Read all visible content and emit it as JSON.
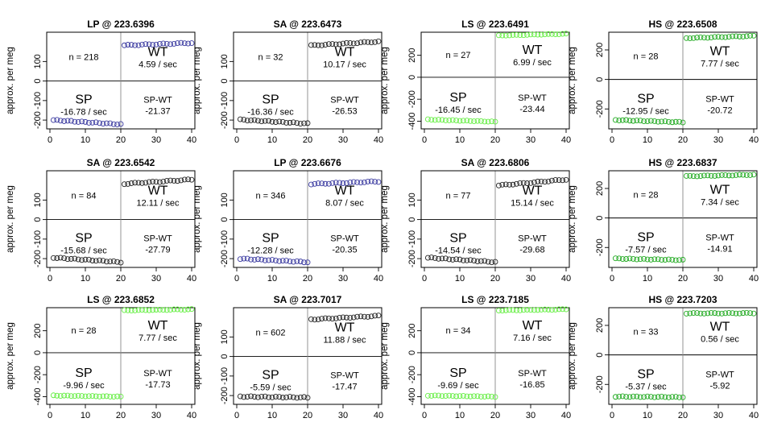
{
  "shared": {
    "ylabel": "approx. per meg",
    "xticks": [
      0,
      10,
      20,
      30,
      40
    ],
    "xlim": [
      0,
      40
    ],
    "colors": {
      "LP": "#3a3aa0",
      "SA": "#222222",
      "LS": "#66ee44",
      "HS": "#22aa22"
    },
    "labels": {
      "wt": "WT",
      "sp": "SP",
      "spwt": "SP-WT"
    }
  },
  "chart_data": [
    {
      "type": "scatter",
      "title": "LP @ 223.6396",
      "gas": "LP",
      "n_text": "n = 218",
      "wt_rate": "4.59 / sec",
      "sp_rate": "-16.78 / sec",
      "spwt_value": "-21.37",
      "ylim": [
        -245,
        250
      ],
      "yticks": [
        "-200",
        "-100",
        "0",
        "100"
      ],
      "ytick_values": [
        -200,
        -100,
        0,
        100
      ],
      "sp_start": -200,
      "sp_end": -222,
      "wt_start": 183,
      "wt_end": 195
    },
    {
      "type": "scatter",
      "title": "SA @ 223.6473",
      "gas": "SA",
      "n_text": "n = 32",
      "wt_rate": "10.17 / sec",
      "sp_rate": "-16.36 / sec",
      "spwt_value": "-26.53",
      "ylim": [
        -245,
        250
      ],
      "yticks": [
        "-200",
        "-100",
        "0",
        "100"
      ],
      "ytick_values": [
        -200,
        -100,
        0,
        100
      ],
      "sp_start": -198,
      "sp_end": -218,
      "wt_start": 182,
      "wt_end": 202
    },
    {
      "type": "scatter",
      "title": "LS @ 223.6491",
      "gas": "LS",
      "n_text": "n = 27",
      "wt_rate": "6.99 / sec",
      "sp_rate": "-16.45 / sec",
      "spwt_value": "-23.44",
      "ylim": [
        -470,
        410
      ],
      "yticks": [
        "-400",
        "-200",
        "0",
        "200"
      ],
      "ytick_values": [
        -400,
        -200,
        0,
        200
      ],
      "sp_start": -385,
      "sp_end": -405,
      "wt_start": 380,
      "wt_end": 395
    },
    {
      "type": "scatter",
      "title": "HS @ 223.6508",
      "gas": "HS",
      "n_text": "n = 28",
      "wt_rate": "7.77 / sec",
      "sp_rate": "-12.95 / sec",
      "spwt_value": "-20.72",
      "ylim": [
        -335,
        320
      ],
      "yticks": [
        "-200",
        "0",
        "200"
      ],
      "ytick_values": [
        -200,
        0,
        200
      ],
      "sp_start": -275,
      "sp_end": -290,
      "wt_start": 280,
      "wt_end": 295
    },
    {
      "type": "scatter",
      "title": "SA @ 223.6542",
      "gas": "SA",
      "n_text": "n = 84",
      "wt_rate": "12.11 / sec",
      "sp_rate": "-15.68 / sec",
      "spwt_value": "-27.79",
      "ylim": [
        -245,
        250
      ],
      "yticks": [
        "-200",
        "-100",
        "0",
        "100"
      ],
      "ytick_values": [
        -200,
        -100,
        0,
        100
      ],
      "sp_start": -195,
      "sp_end": -218,
      "wt_start": 183,
      "wt_end": 205
    },
    {
      "type": "scatter",
      "title": "LP @ 223.6676",
      "gas": "LP",
      "n_text": "n = 346",
      "wt_rate": "8.07 / sec",
      "sp_rate": "-12.28 / sec",
      "spwt_value": "-20.35",
      "ylim": [
        -245,
        250
      ],
      "yticks": [
        "-200",
        "-100",
        "0",
        "100"
      ],
      "ytick_values": [
        -200,
        -100,
        0,
        100
      ],
      "sp_start": -200,
      "sp_end": -218,
      "wt_start": 182,
      "wt_end": 195
    },
    {
      "type": "scatter",
      "title": "SA @ 223.6806",
      "gas": "SA",
      "n_text": "n = 77",
      "wt_rate": "15.14 / sec",
      "sp_rate": "-14.54 / sec",
      "spwt_value": "-29.68",
      "ylim": [
        -245,
        250
      ],
      "yticks": [
        "-200",
        "-100",
        "0",
        "100"
      ],
      "ytick_values": [
        -200,
        -100,
        0,
        100
      ],
      "sp_start": -195,
      "sp_end": -218,
      "wt_start": 175,
      "wt_end": 205
    },
    {
      "type": "scatter",
      "title": "HS @ 223.6837",
      "gas": "HS",
      "n_text": "n = 28",
      "wt_rate": "7.34 / sec",
      "sp_rate": "-7.57 / sec",
      "spwt_value": "-14.91",
      "ylim": [
        -335,
        320
      ],
      "yticks": [
        "-200",
        "0",
        "200"
      ],
      "ytick_values": [
        -200,
        0,
        200
      ],
      "sp_start": -275,
      "sp_end": -285,
      "wt_start": 283,
      "wt_end": 293
    },
    {
      "type": "scatter",
      "title": "LS @ 223.6852",
      "gas": "LS",
      "n_text": "n = 28",
      "wt_rate": "7.77 / sec",
      "sp_rate": "-9.96 / sec",
      "spwt_value": "-17.73",
      "ylim": [
        -470,
        410
      ],
      "yticks": [
        "-400",
        "-200",
        "0",
        "200"
      ],
      "ytick_values": [
        -400,
        -200,
        0,
        200
      ],
      "sp_start": -390,
      "sp_end": -400,
      "wt_start": 385,
      "wt_end": 395
    },
    {
      "type": "scatter",
      "title": "SA @ 223.7017",
      "gas": "SA",
      "n_text": "n = 602",
      "wt_rate": "11.88 / sec",
      "sp_rate": "-5.59 / sec",
      "spwt_value": "-17.47",
      "ylim": [
        -245,
        250
      ],
      "yticks": [
        "-200",
        "-100",
        "0",
        "100"
      ],
      "ytick_values": [
        -200,
        -100,
        0,
        100
      ],
      "sp_start": -205,
      "sp_end": -210,
      "wt_start": 190,
      "wt_end": 208
    },
    {
      "type": "scatter",
      "title": "LS @ 223.7185",
      "gas": "LS",
      "n_text": "n = 34",
      "wt_rate": "7.16 / sec",
      "sp_rate": "-9.69 / sec",
      "spwt_value": "-16.85",
      "ylim": [
        -470,
        410
      ],
      "yticks": [
        "-400",
        "-200",
        "0",
        "200"
      ],
      "ytick_values": [
        -400,
        -200,
        0,
        200
      ],
      "sp_start": -390,
      "sp_end": -400,
      "wt_start": 385,
      "wt_end": 395
    },
    {
      "type": "scatter",
      "title": "HS @ 223.7203",
      "gas": "HS",
      "n_text": "n = 33",
      "wt_rate": "0.56 / sec",
      "sp_rate": "-5.37 / sec",
      "spwt_value": "-5.92",
      "ylim": [
        -335,
        320
      ],
      "yticks": [
        "-200",
        "0",
        "200"
      ],
      "ytick_values": [
        -200,
        0,
        200
      ],
      "sp_start": -282,
      "sp_end": -286,
      "wt_start": 282,
      "wt_end": 283
    }
  ]
}
